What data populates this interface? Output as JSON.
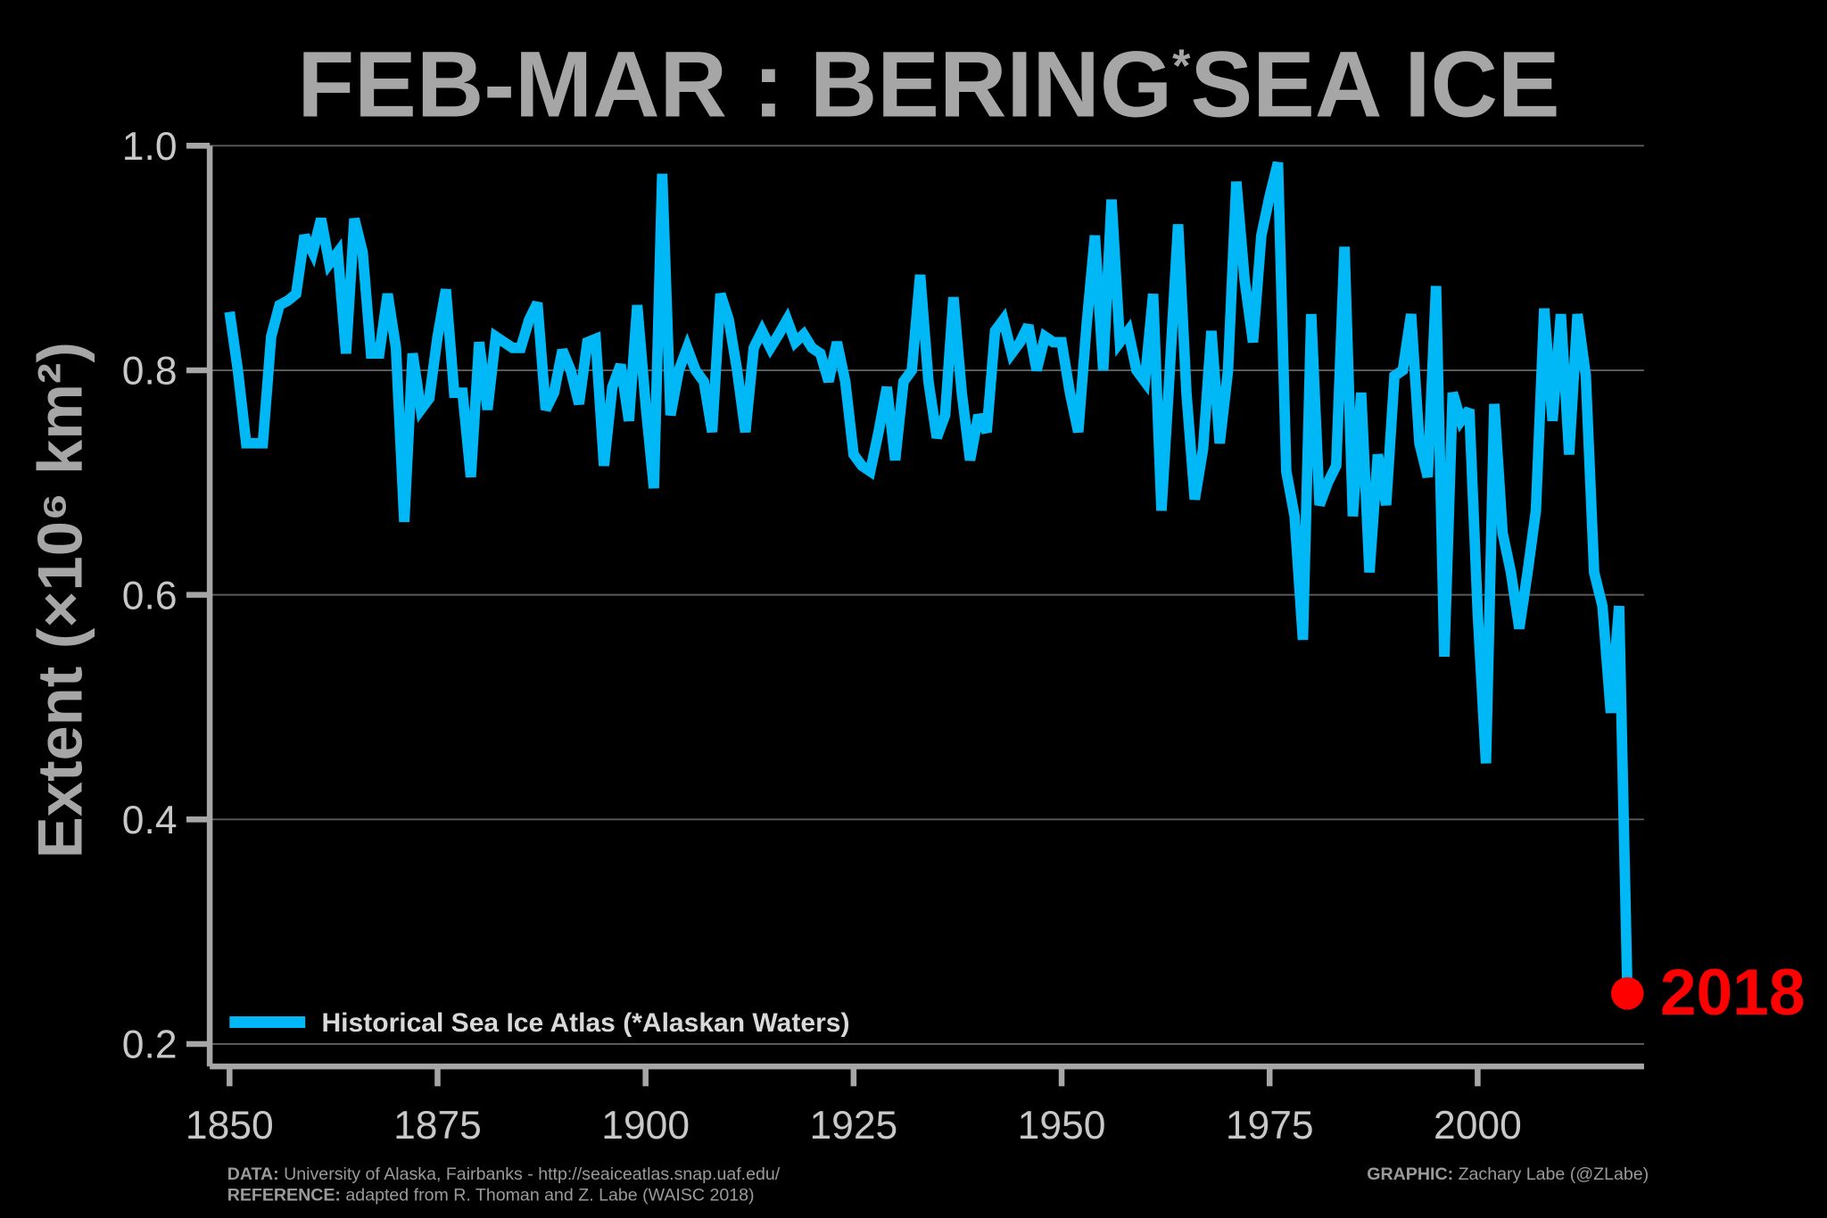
{
  "chart_data": {
    "type": "line",
    "title": "FEB-MAR : BERING",
    "title_superscript": "*",
    "title_suffix": "SEA ICE",
    "ylabel": "Extent (×10⁶ km²)",
    "x": [
      1850,
      1851,
      1852,
      1853,
      1854,
      1855,
      1856,
      1857,
      1858,
      1859,
      1860,
      1861,
      1862,
      1863,
      1864,
      1865,
      1866,
      1867,
      1868,
      1869,
      1870,
      1871,
      1872,
      1873,
      1874,
      1875,
      1876,
      1877,
      1878,
      1879,
      1880,
      1881,
      1882,
      1883,
      1884,
      1885,
      1886,
      1887,
      1888,
      1889,
      1890,
      1891,
      1892,
      1893,
      1894,
      1895,
      1896,
      1897,
      1898,
      1899,
      1900,
      1901,
      1902,
      1903,
      1904,
      1905,
      1906,
      1907,
      1908,
      1909,
      1910,
      1911,
      1912,
      1913,
      1914,
      1915,
      1916,
      1917,
      1918,
      1919,
      1920,
      1921,
      1922,
      1923,
      1924,
      1925,
      1926,
      1927,
      1928,
      1929,
      1930,
      1931,
      1932,
      1933,
      1934,
      1935,
      1936,
      1937,
      1938,
      1939,
      1940,
      1941,
      1942,
      1943,
      1944,
      1945,
      1946,
      1947,
      1948,
      1949,
      1950,
      1951,
      1952,
      1953,
      1954,
      1955,
      1956,
      1957,
      1958,
      1959,
      1960,
      1961,
      1962,
      1963,
      1964,
      1965,
      1966,
      1967,
      1968,
      1969,
      1970,
      1971,
      1972,
      1973,
      1974,
      1975,
      1976,
      1977,
      1978,
      1979,
      1980,
      1981,
      1982,
      1983,
      1984,
      1985,
      1986,
      1987,
      1988,
      1989,
      1990,
      1991,
      1992,
      1993,
      1994,
      1995,
      1996,
      1997,
      1998,
      1999,
      2000,
      2001,
      2002,
      2003,
      2004,
      2005,
      2006,
      2007,
      2008,
      2009,
      2010,
      2011,
      2012,
      2013,
      2014,
      2015,
      2016,
      2017,
      2018
    ],
    "series": [
      {
        "name": "Historical Sea Ice Atlas (*Alaskan Waters)",
        "color": "#00b8f5",
        "values": [
          0.852,
          0.8,
          0.735,
          0.735,
          0.735,
          0.83,
          0.858,
          0.862,
          0.868,
          0.92,
          0.905,
          0.935,
          0.895,
          0.905,
          0.815,
          0.935,
          0.905,
          0.815,
          0.815,
          0.868,
          0.82,
          0.665,
          0.815,
          0.765,
          0.775,
          0.83,
          0.872,
          0.78,
          0.78,
          0.705,
          0.825,
          0.765,
          0.83,
          0.825,
          0.82,
          0.82,
          0.845,
          0.86,
          0.765,
          0.78,
          0.818,
          0.8,
          0.77,
          0.825,
          0.828,
          0.715,
          0.785,
          0.805,
          0.755,
          0.858,
          0.77,
          0.695,
          0.975,
          0.76,
          0.8,
          0.82,
          0.8,
          0.79,
          0.745,
          0.868,
          0.845,
          0.8,
          0.745,
          0.82,
          0.835,
          0.82,
          0.832,
          0.845,
          0.825,
          0.832,
          0.82,
          0.815,
          0.79,
          0.825,
          0.79,
          0.725,
          0.715,
          0.71,
          0.745,
          0.785,
          0.72,
          0.79,
          0.8,
          0.885,
          0.79,
          0.74,
          0.76,
          0.865,
          0.78,
          0.72,
          0.76,
          0.745,
          0.835,
          0.845,
          0.815,
          0.825,
          0.84,
          0.8,
          0.83,
          0.825,
          0.825,
          0.78,
          0.745,
          0.84,
          0.92,
          0.8,
          0.952,
          0.825,
          0.835,
          0.8,
          0.79,
          0.868,
          0.675,
          0.8,
          0.93,
          0.78,
          0.685,
          0.73,
          0.835,
          0.735,
          0.8,
          0.968,
          0.88,
          0.825,
          0.92,
          0.955,
          0.985,
          0.71,
          0.67,
          0.56,
          0.85,
          0.68,
          0.7,
          0.715,
          0.91,
          0.67,
          0.78,
          0.62,
          0.725,
          0.68,
          0.795,
          0.8,
          0.85,
          0.735,
          0.705,
          0.875,
          0.545,
          0.78,
          0.755,
          0.765,
          0.585,
          0.45,
          0.77,
          0.655,
          0.62,
          0.57,
          0.62,
          0.675,
          0.855,
          0.755,
          0.85,
          0.725,
          0.85,
          0.795,
          0.62,
          0.59,
          0.495,
          0.59,
          0.245
        ]
      }
    ],
    "highlight_color": "#ff0000",
    "annotation": "2018",
    "xlim": [
      1850,
      2020
    ],
    "xticks": [
      1850,
      1875,
      1900,
      1925,
      1950,
      1975,
      2000
    ],
    "ylim": [
      0.18,
      1.0
    ],
    "yticks": [
      0.2,
      0.4,
      0.6,
      0.8,
      {
        "value": 1,
        "label": "1.0"
      }
    ],
    "grid": true,
    "legend": "lower left",
    "footer": {
      "data_label": "DATA:",
      "data_text": "University of Alaska, Fairbanks - http://seaiceatlas.snap.uaf.edu/",
      "reference_label": "REFERENCE:",
      "reference_text": "adapted from R. Thoman and Z. Labe (WAISC 2018)",
      "graphic_label": "GRAPHIC:",
      "graphic_text": "Zachary Labe (@ZLabe)"
    }
  }
}
